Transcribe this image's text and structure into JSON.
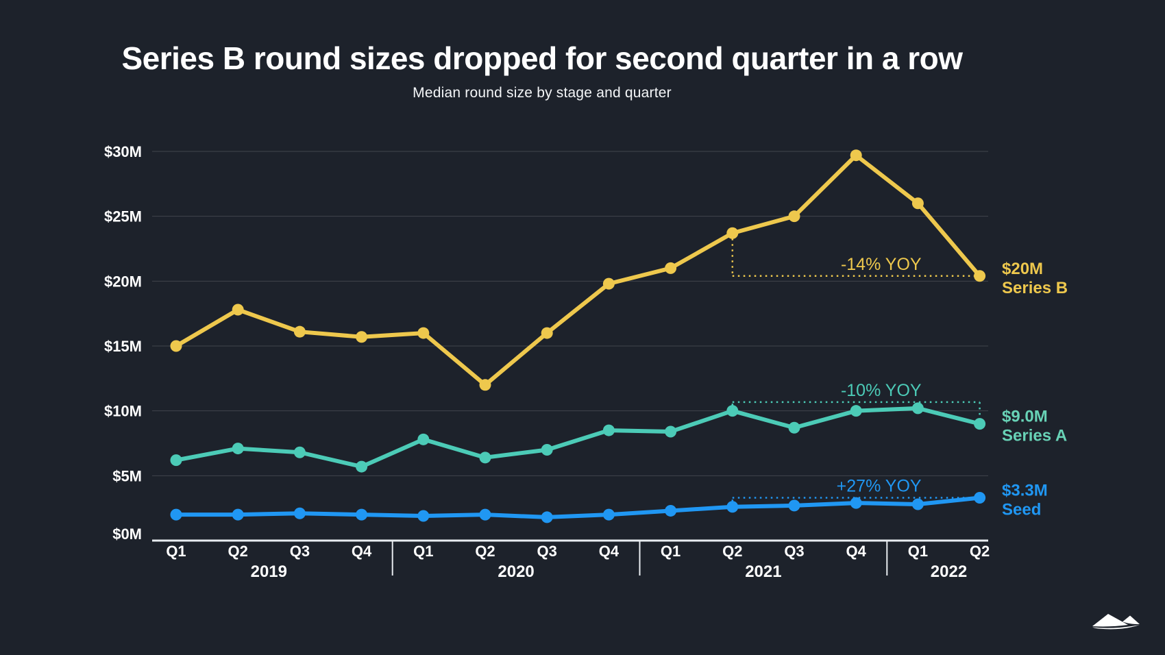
{
  "page": {
    "background_color": "#1d222b",
    "logo_icon": "mountains-logo"
  },
  "chart_data": {
    "type": "line",
    "title": "Series B round sizes dropped for second quarter in a row",
    "subtitle": "Median round size by stage and quarter",
    "x_categories": [
      "Q1",
      "Q2",
      "Q3",
      "Q4",
      "Q1",
      "Q2",
      "Q3",
      "Q4",
      "Q1",
      "Q2",
      "Q3",
      "Q4",
      "Q1",
      "Q2"
    ],
    "year_groups": [
      {
        "label": "2019",
        "from": 0,
        "to": 3
      },
      {
        "label": "2020",
        "from": 4,
        "to": 7
      },
      {
        "label": "2021",
        "from": 8,
        "to": 11
      },
      {
        "label": "2022",
        "from": 12,
        "to": 13
      }
    ],
    "y_ticks": [
      {
        "label": "$0M",
        "value": 0
      },
      {
        "label": "$5M",
        "value": 5
      },
      {
        "label": "$10M",
        "value": 10
      },
      {
        "label": "$15M",
        "value": 15
      },
      {
        "label": "$20M",
        "value": 20
      },
      {
        "label": "$25M",
        "value": 25
      },
      {
        "label": "$30M",
        "value": 30
      }
    ],
    "ylim": [
      0,
      30
    ],
    "grid": true,
    "legend_position": "right-end-labels",
    "series": [
      {
        "name": "Series B",
        "slug": "series-b",
        "color": "#eec84d",
        "label_color": "#eec84d",
        "values": [
          15.0,
          17.8,
          16.1,
          15.7,
          16.0,
          12.0,
          16.0,
          19.8,
          21.0,
          23.7,
          25.0,
          29.7,
          26.0,
          20.4
        ],
        "end_value_label": "$20M",
        "annotation": {
          "text": "-14% YOY",
          "from_index": 9,
          "to_index": 13,
          "placement": "end-level"
        }
      },
      {
        "name": "Series A",
        "slug": "series-a",
        "color": "#4ccbb7",
        "label_color": "#68d2b6",
        "values": [
          6.2,
          7.1,
          6.8,
          5.7,
          7.8,
          6.4,
          7.0,
          8.5,
          8.4,
          10.0,
          8.7,
          10.0,
          10.2,
          9.0
        ],
        "end_value_label": "$9.0M",
        "annotation": {
          "text": "-10% YOY",
          "from_index": 9,
          "to_index": 13,
          "placement": "above"
        }
      },
      {
        "name": "Seed",
        "slug": "seed",
        "color": "#2097f3",
        "label_color": "#2097f3",
        "values": [
          2.0,
          2.0,
          2.1,
          2.0,
          1.9,
          2.0,
          1.8,
          2.0,
          2.3,
          2.6,
          2.7,
          2.9,
          2.8,
          3.3
        ],
        "end_value_label": "$3.3M",
        "annotation": {
          "text": "+27% YOY",
          "from_index": 9,
          "to_index": 13,
          "placement": "end-level"
        }
      }
    ]
  }
}
